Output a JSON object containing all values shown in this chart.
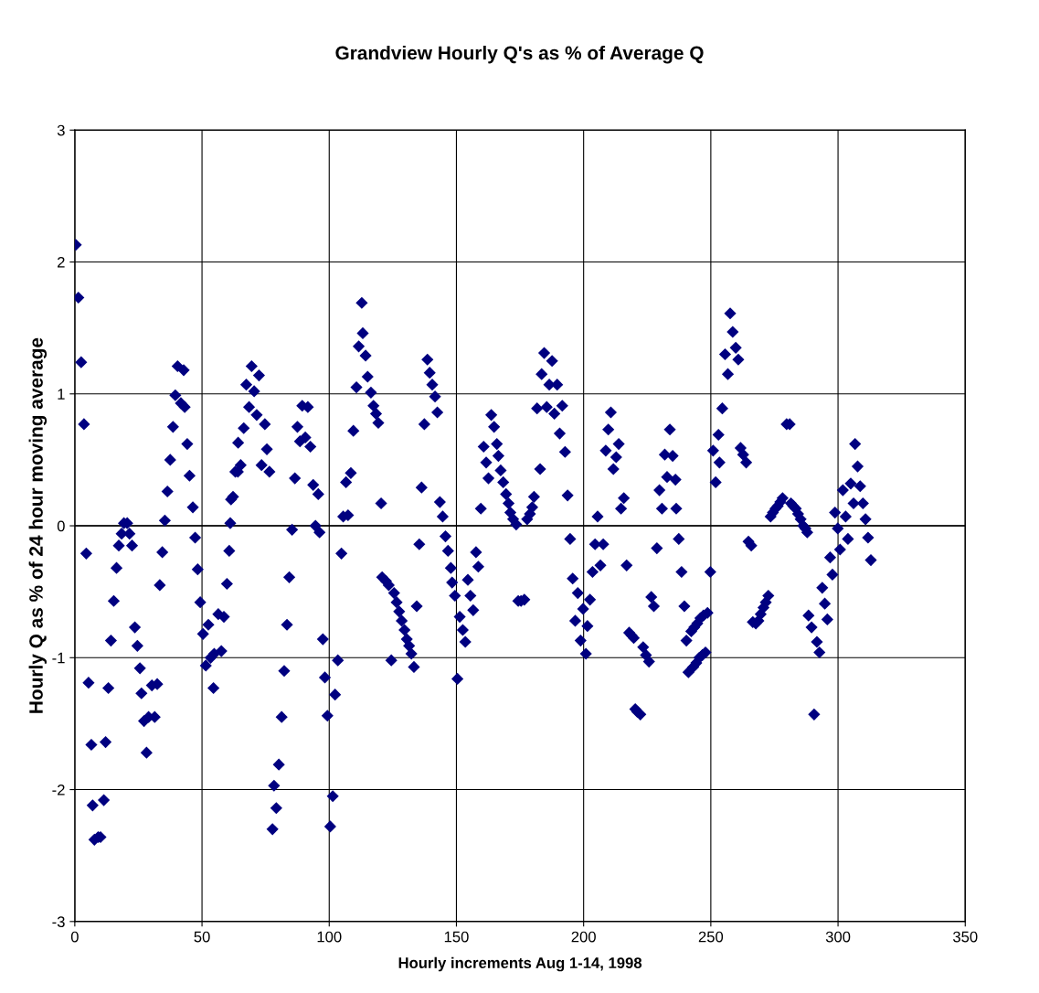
{
  "chart_data": {
    "type": "scatter",
    "title": "Grandview Hourly Q's as % of Average Q",
    "xlabel": "Hourly increments Aug 1-14, 1998",
    "ylabel": "Hourly Q as % of 24 hour moving average",
    "xlim": [
      0,
      350
    ],
    "xticks": [
      0,
      50,
      100,
      150,
      200,
      250,
      300,
      350
    ],
    "ylim": [
      -3,
      3
    ],
    "yticks": [
      -3,
      -2,
      -1,
      0,
      1,
      2,
      3
    ],
    "grid": true,
    "marker": "diamond",
    "series": [
      {
        "color": "#000080",
        "x": [
          0.4,
          1.4,
          2.5,
          3.6,
          4.5,
          5.4,
          6.5,
          7.0,
          7.7,
          9.2,
          10.1,
          11.4,
          12.1,
          13.2,
          14.2,
          15.3,
          16.4,
          17.3,
          18.4,
          19.3,
          20.6,
          21.5,
          22.5,
          23.6,
          24.6,
          25.6,
          26.2,
          27.2,
          28.2,
          29.0,
          30.3,
          31.4,
          32.4,
          33.4,
          34.4,
          35.4,
          36.4,
          37.5,
          38.6,
          39.5,
          40.4,
          41.7,
          42.8,
          43.2,
          44.2,
          45.1,
          46.4,
          47.3,
          48.3,
          49.3,
          50.4,
          51.5,
          52.5,
          53.4,
          54.5,
          54.8,
          56.4,
          57.6,
          58.6,
          59.8,
          60.7,
          61.1,
          61.4,
          62.2,
          63.1,
          64.1,
          65.2,
          64.2,
          66.4,
          67.4,
          68.5,
          69.5,
          70.5,
          71.5,
          72.4,
          73.4,
          74.7,
          75.5,
          76.5,
          77.7,
          78.3,
          79.2,
          80.2,
          81.3,
          82.3,
          83.4,
          84.3,
          85.4,
          86.5,
          87.5,
          88.5,
          89.4,
          90.6,
          91.6,
          92.6,
          93.7,
          94.6,
          95.7,
          96.2,
          97.5,
          98.3,
          99.3,
          100.4,
          101.4,
          102.3,
          103.4,
          104.8,
          105.5,
          106.6,
          107.4,
          108.5,
          109.5,
          110.7,
          111.6,
          112.8,
          113.2,
          114.3,
          115.1,
          116.4,
          117.4,
          118.4,
          119.3,
          120.4,
          120.8,
          122.3,
          123.4,
          124.4,
          125.5,
          126.5,
          127.5,
          128.5,
          129.6,
          130.5,
          131.4,
          132.3,
          133.3,
          134.4,
          135.4,
          136.3,
          137.4,
          138.6,
          139.5,
          140.5,
          141.6,
          142.5,
          143.5,
          144.6,
          145.7,
          146.7,
          147.8,
          148.3,
          149.4,
          150.4,
          151.3,
          152.5,
          153.5,
          154.5,
          155.5,
          156.6,
          157.7,
          158.6,
          159.6,
          160.7,
          161.7,
          162.6,
          163.7,
          164.8,
          165.9,
          166.5,
          167.4,
          168.4,
          169.5,
          170.5,
          171.2,
          172.3,
          173.5,
          174.3,
          175.4,
          176.7,
          177.8,
          178.9,
          179.8,
          180.5,
          181.7,
          182.9,
          183.5,
          184.5,
          185.5,
          186.5,
          187.6,
          188.5,
          189.6,
          190.6,
          191.6,
          192.7,
          193.7,
          194.7,
          195.7,
          196.7,
          197.7,
          198.8,
          199.8,
          200.9,
          201.5,
          202.5,
          203.5,
          204.5,
          205.5,
          206.6,
          207.7,
          208.7,
          209.7,
          210.7,
          211.7,
          212.8,
          213.8,
          214.7,
          215.8,
          216.9,
          217.9,
          218.8,
          219.7,
          220.3,
          221.1,
          222.3,
          223.4,
          224.5,
          225.7,
          226.6,
          227.6,
          228.8,
          229.8,
          230.8,
          231.9,
          232.8,
          233.9,
          235.0,
          236.1,
          236.4,
          237.4,
          238.5,
          239.6,
          240.4,
          241.2,
          242.3,
          243.1,
          243.5,
          244.3,
          244.7,
          245.5,
          245.9,
          246.7,
          247.1,
          247.9,
          248.7,
          249.8,
          250.9,
          251.9,
          253.0,
          253.4,
          254.5,
          255.6,
          256.7,
          257.6,
          258.6,
          259.8,
          260.8,
          261.7,
          262.7,
          263.9,
          264.8,
          265.9,
          266.5,
          267.7,
          268.7,
          269.6,
          270.7,
          271.6,
          272.6,
          273.5,
          274.4,
          275.4,
          276.3,
          277.3,
          278.2,
          279.8,
          281.0,
          281.5,
          282.4,
          283.4,
          284.3,
          285.3,
          286.3,
          287.2,
          287.9,
          288.4,
          289.6,
          290.6,
          291.7,
          292.7,
          293.8,
          294.8,
          295.8,
          296.9,
          297.8,
          298.8,
          299.9,
          300.8,
          301.9,
          303.0,
          303.9,
          305.0,
          306.1,
          306.7,
          307.7,
          308.7,
          309.8,
          310.8,
          311.8,
          312.9
        ],
        "values": [
          2.13,
          1.73,
          1.24,
          0.77,
          -0.21,
          -1.19,
          -1.66,
          -2.12,
          -2.38,
          -2.36,
          -2.36,
          -2.08,
          -1.64,
          -1.23,
          -0.87,
          -0.57,
          -0.32,
          -0.15,
          -0.06,
          0.02,
          0.02,
          -0.06,
          -0.15,
          -0.77,
          -0.91,
          -1.08,
          -1.27,
          -1.48,
          -1.72,
          -1.45,
          -1.21,
          -1.45,
          -1.2,
          -0.45,
          -0.2,
          0.04,
          0.26,
          0.5,
          0.75,
          0.99,
          1.21,
          0.93,
          1.18,
          0.9,
          0.62,
          0.38,
          0.14,
          -0.09,
          -0.33,
          -0.58,
          -0.82,
          -1.06,
          -0.75,
          -1.0,
          -1.23,
          -0.97,
          -0.67,
          -0.95,
          -0.69,
          -0.44,
          -0.19,
          0.02,
          0.2,
          0.22,
          0.41,
          0.41,
          0.46,
          0.63,
          0.74,
          1.07,
          0.9,
          1.21,
          1.02,
          0.84,
          1.14,
          0.46,
          0.77,
          0.58,
          0.41,
          -2.3,
          -1.97,
          -2.14,
          -1.81,
          -1.45,
          -1.1,
          -0.75,
          -0.39,
          -0.03,
          0.36,
          0.75,
          0.64,
          0.91,
          0.67,
          0.9,
          0.6,
          0.31,
          0.0,
          0.24,
          -0.05,
          -0.86,
          -1.15,
          -1.44,
          -2.28,
          -2.05,
          -1.28,
          -1.02,
          -0.21,
          0.07,
          0.33,
          0.08,
          0.4,
          0.72,
          1.05,
          1.36,
          1.69,
          1.46,
          1.29,
          1.13,
          1.01,
          0.91,
          0.85,
          0.78,
          0.17,
          -0.39,
          -0.42,
          -0.45,
          -1.02,
          -0.51,
          -0.58,
          -0.65,
          -0.72,
          -0.79,
          -0.86,
          -0.91,
          -0.97,
          -1.07,
          -0.61,
          -0.14,
          0.29,
          0.77,
          1.26,
          1.16,
          1.07,
          0.98,
          0.86,
          0.18,
          0.07,
          -0.08,
          -0.19,
          -0.32,
          -0.43,
          -0.53,
          -1.16,
          -0.69,
          -0.79,
          -0.88,
          -0.41,
          -0.53,
          -0.64,
          -0.2,
          -0.31,
          0.13,
          0.6,
          0.48,
          0.36,
          0.84,
          0.75,
          0.62,
          0.53,
          0.42,
          0.33,
          0.24,
          0.17,
          0.1,
          0.05,
          0.01,
          -0.57,
          -0.57,
          -0.56,
          0.05,
          0.09,
          0.14,
          0.22,
          0.89,
          0.43,
          1.15,
          1.31,
          0.9,
          1.07,
          1.25,
          0.85,
          1.07,
          0.7,
          0.91,
          0.56,
          0.23,
          -0.1,
          -0.4,
          -0.72,
          -0.51,
          -0.87,
          -0.63,
          -0.97,
          -0.76,
          -0.56,
          -0.35,
          -0.14,
          0.07,
          -0.3,
          -0.14,
          0.57,
          0.73,
          0.86,
          0.43,
          0.52,
          0.62,
          0.13,
          0.21,
          -0.3,
          -0.81,
          -0.83,
          -0.85,
          -1.39,
          -1.41,
          -1.43,
          -0.92,
          -0.98,
          -1.03,
          -0.54,
          -0.61,
          -0.17,
          0.27,
          0.13,
          0.54,
          0.37,
          0.73,
          0.53,
          0.35,
          0.13,
          -0.1,
          -0.35,
          -0.61,
          -0.87,
          -1.11,
          -0.8,
          -1.07,
          -0.77,
          -1.04,
          -0.74,
          -1.0,
          -0.7,
          -0.98,
          -0.68,
          -0.96,
          -0.66,
          -0.35,
          0.57,
          0.33,
          0.69,
          0.48,
          0.89,
          1.3,
          1.15,
          1.61,
          1.47,
          1.35,
          1.26,
          0.59,
          0.54,
          0.48,
          -0.12,
          -0.15,
          -0.73,
          -0.74,
          -0.72,
          -0.67,
          -0.62,
          -0.58,
          -0.53,
          0.07,
          0.1,
          0.13,
          0.15,
          0.18,
          0.21,
          0.77,
          0.77,
          0.17,
          0.15,
          0.13,
          0.09,
          0.05,
          0.0,
          -0.02,
          -0.05,
          -0.68,
          -0.77,
          -1.43,
          -0.88,
          -0.96,
          -0.47,
          -0.59,
          -0.71,
          -0.24,
          -0.37,
          0.1,
          -0.02,
          -0.18,
          0.27,
          0.07,
          -0.1,
          0.32,
          0.17,
          0.62,
          0.45,
          0.3,
          0.17,
          0.05,
          -0.09,
          -0.26
        ]
      }
    ]
  }
}
